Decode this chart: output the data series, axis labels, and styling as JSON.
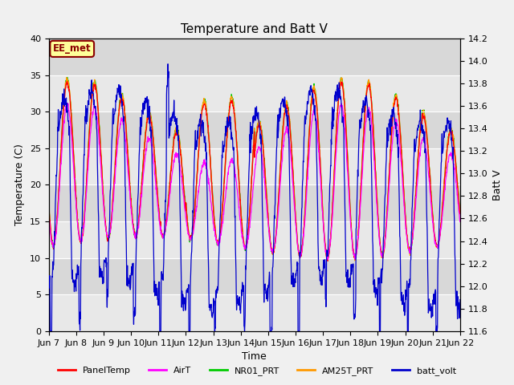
{
  "title": "Temperature and Batt V",
  "xlabel": "Time",
  "ylabel_left": "Temperature (C)",
  "ylabel_right": "Batt V",
  "annotation": "EE_met",
  "ylim_left": [
    0,
    40
  ],
  "ylim_right": [
    11.6,
    14.2
  ],
  "yticks_left": [
    0,
    5,
    10,
    15,
    20,
    25,
    30,
    35,
    40
  ],
  "yticks_right": [
    11.6,
    11.8,
    12.0,
    12.2,
    12.4,
    12.6,
    12.8,
    13.0,
    13.2,
    13.4,
    13.6,
    13.8,
    14.0,
    14.2
  ],
  "xtick_labels": [
    "Jun 7",
    "Jun 8",
    "Jun 9",
    "Jun 10",
    "Jun 11",
    "Jun 12",
    "Jun 13",
    "Jun 14",
    "Jun 15",
    "Jun 16",
    "Jun 17",
    "Jun 18",
    "Jun 19",
    "Jun 20",
    "Jun 21",
    "Jun 22"
  ],
  "series_colors": {
    "PanelTemp": "#ff0000",
    "AirT": "#ff00ff",
    "NR01_PRT": "#00cc00",
    "AM25T_PRT": "#ff9900",
    "batt_volt": "#0000cc"
  },
  "band_colors": [
    "#e8e8e8",
    "#d8d8d8"
  ],
  "band_edges": [
    0,
    5,
    10,
    15,
    20,
    25,
    30,
    35,
    40
  ],
  "background_color": "#f0f0f0",
  "title_fontsize": 11,
  "axis_fontsize": 9,
  "tick_fontsize": 8
}
